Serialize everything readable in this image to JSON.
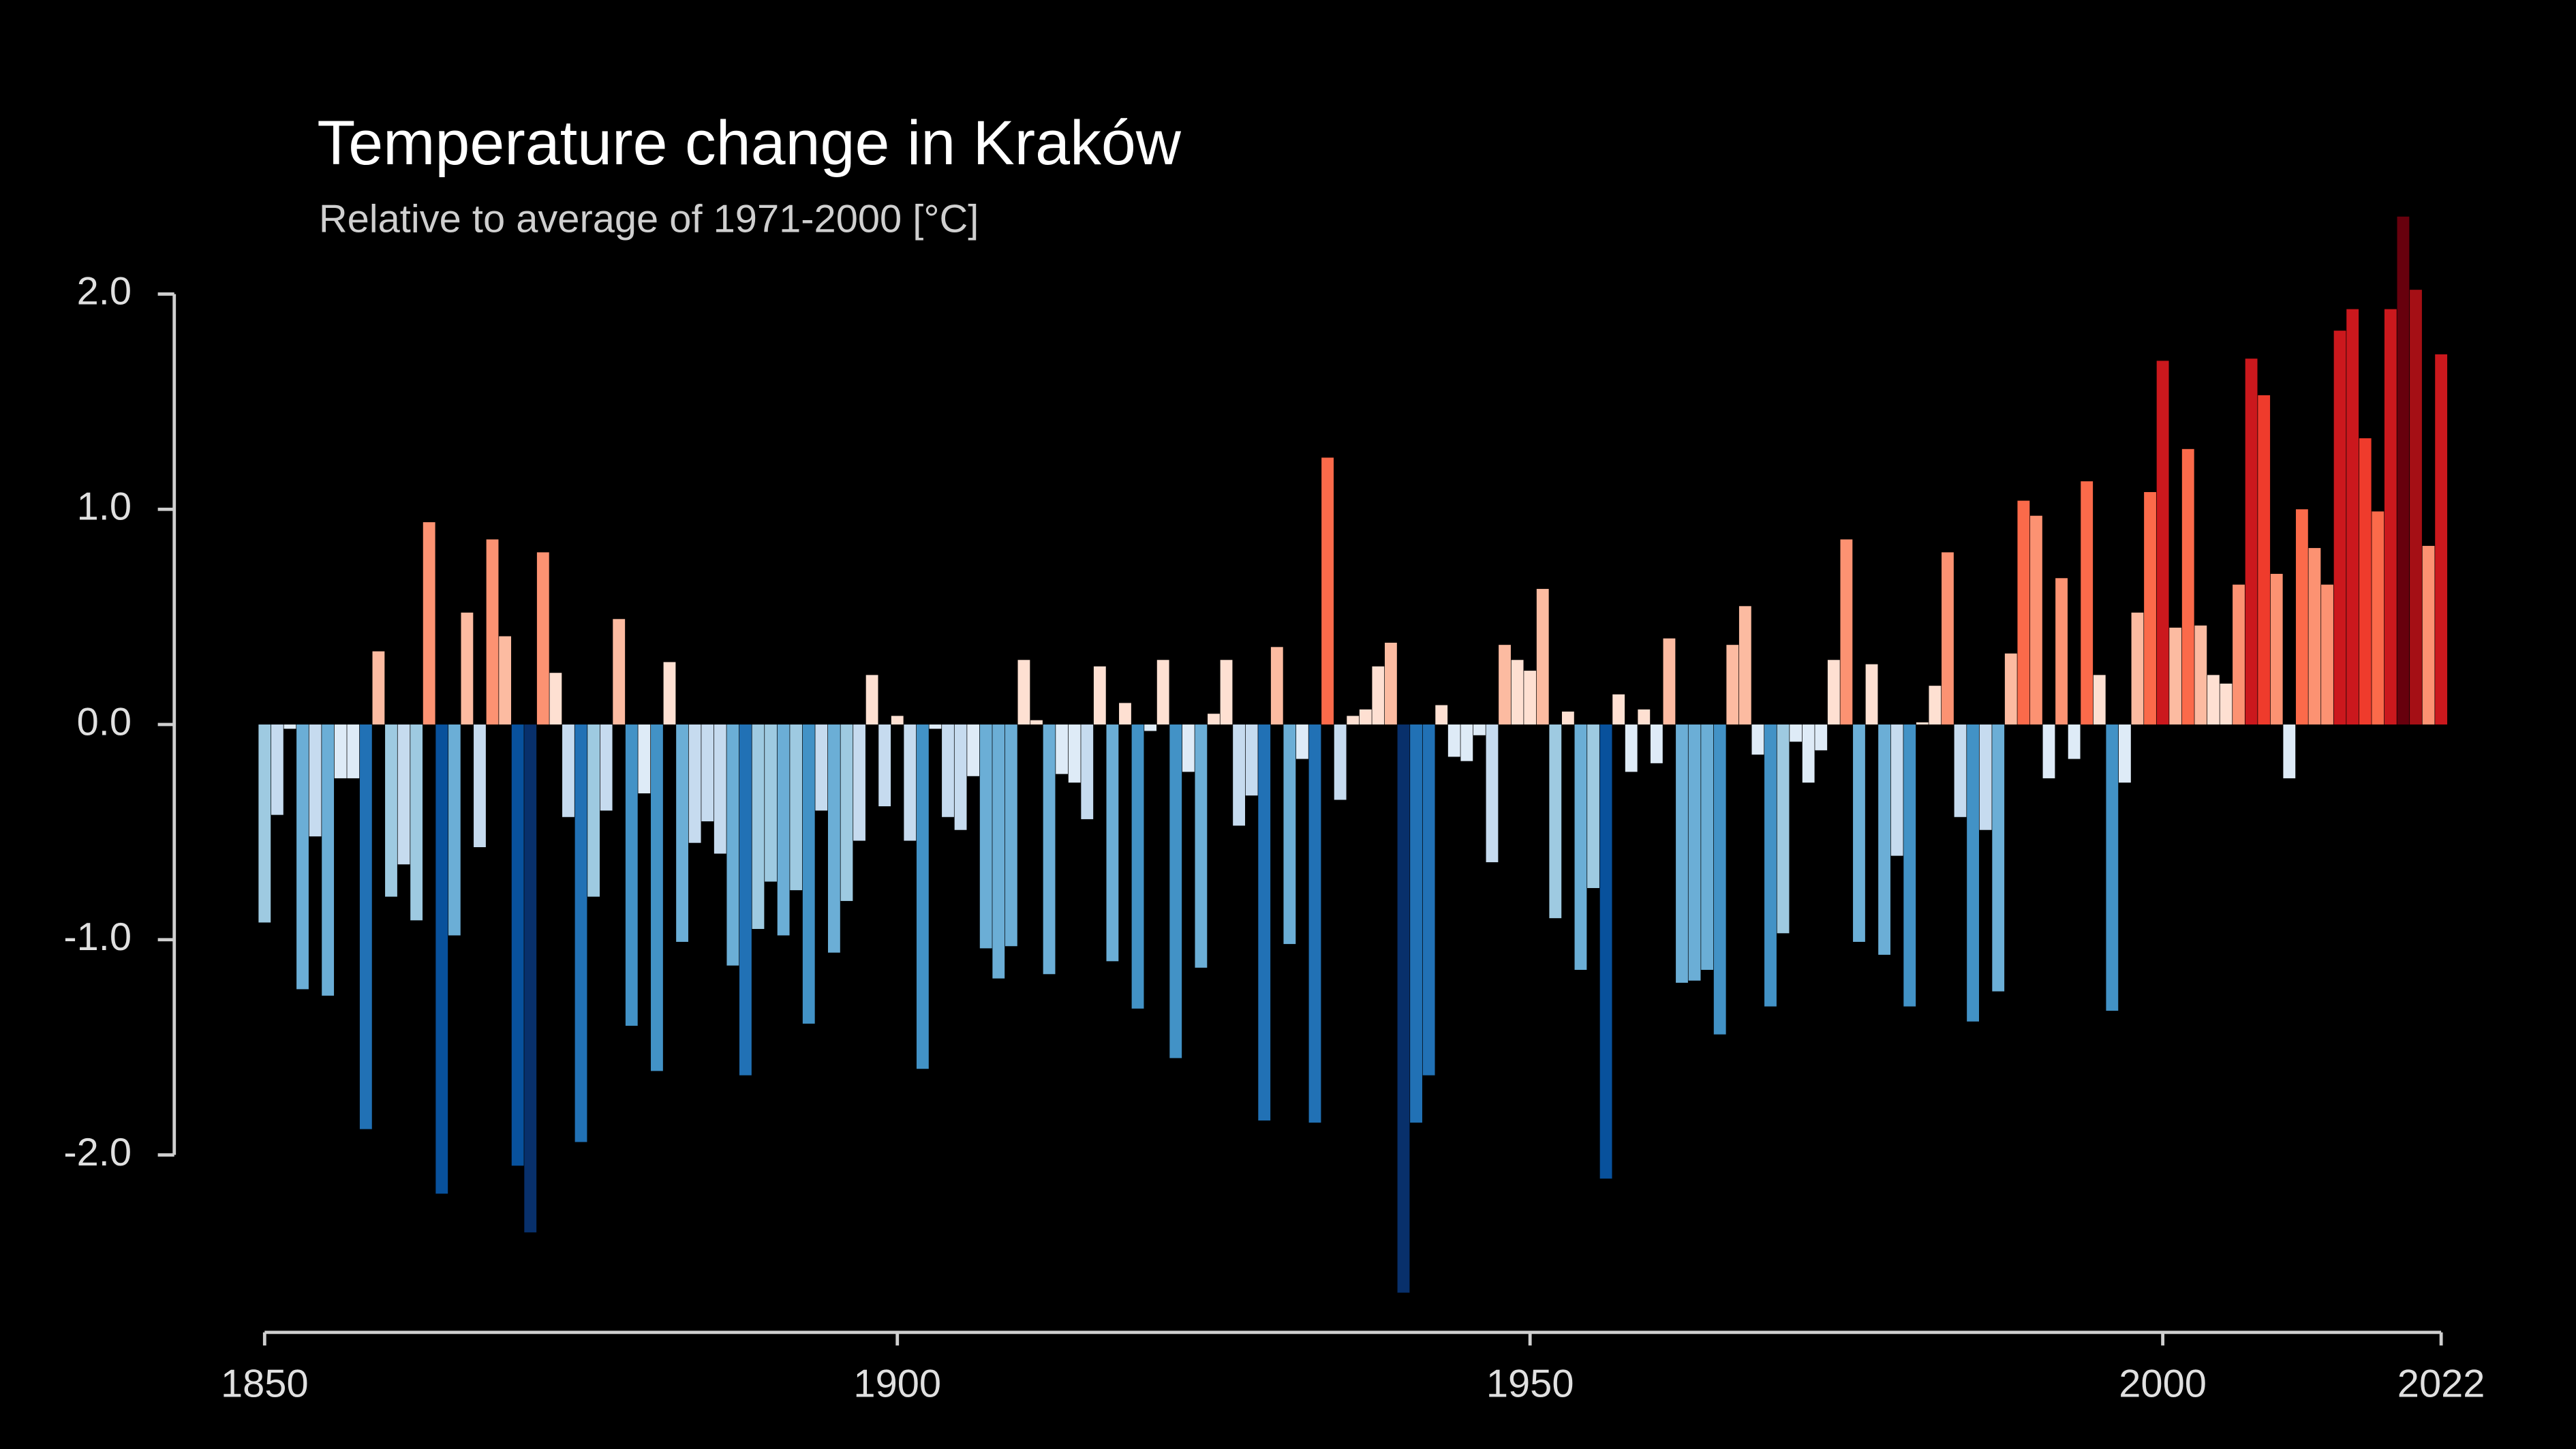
{
  "chart_data": {
    "type": "bar",
    "title": "Temperature change in Kraków",
    "subtitle": "Relative to average of 1971-2000  [°C]",
    "x_start": 1850,
    "values": [
      -0.92,
      -0.42,
      -0.02,
      -1.23,
      -0.52,
      -1.26,
      -0.25,
      -0.25,
      -1.88,
      0.34,
      -0.8,
      -0.65,
      -0.91,
      0.94,
      -2.18,
      -0.98,
      0.52,
      -0.57,
      0.86,
      0.41,
      -2.05,
      -2.36,
      0.8,
      0.24,
      -0.43,
      -1.94,
      -0.8,
      -0.4,
      0.49,
      -1.4,
      -0.32,
      -1.61,
      0.29,
      -1.01,
      -0.55,
      -0.45,
      -0.6,
      -1.12,
      -1.63,
      -0.95,
      -0.73,
      -0.98,
      -0.77,
      -1.39,
      -0.4,
      -1.06,
      -0.82,
      -0.54,
      0.23,
      -0.38,
      0.04,
      -0.54,
      -1.6,
      -0.02,
      -0.43,
      -0.49,
      -0.24,
      -1.04,
      -1.18,
      -1.03,
      0.3,
      0.02,
      -1.16,
      -0.23,
      -0.27,
      -0.44,
      0.27,
      -1.1,
      0.1,
      -1.32,
      -0.03,
      0.3,
      -1.55,
      -0.22,
      -1.13,
      0.05,
      0.3,
      -0.47,
      -0.33,
      -1.84,
      0.36,
      -1.02,
      -0.16,
      -1.85,
      1.24,
      -0.35,
      0.04,
      0.07,
      0.27,
      0.38,
      -2.64,
      -1.85,
      -1.63,
      0.09,
      -0.15,
      -0.17,
      -0.05,
      -0.64,
      0.37,
      0.3,
      0.25,
      0.63,
      -0.9,
      0.06,
      -1.14,
      -0.76,
      -2.11,
      0.14,
      -0.22,
      0.07,
      -0.18,
      0.4,
      -1.2,
      -1.19,
      -1.14,
      -1.44,
      0.37,
      0.55,
      -0.14,
      -1.31,
      -0.97,
      -0.08,
      -0.27,
      -0.12,
      0.3,
      0.86,
      -1.01,
      0.28,
      -1.07,
      -0.61,
      -1.31,
      0.01,
      0.18,
      0.8,
      -0.43,
      -1.38,
      -0.49,
      -1.24,
      0.33,
      1.04,
      0.97,
      -0.25,
      0.68,
      -0.16,
      1.13,
      0.23,
      -1.33,
      -0.27,
      0.52,
      1.08,
      1.69,
      0.45,
      1.28,
      0.46,
      0.23,
      0.19,
      0.65,
      1.7,
      1.53,
      0.7,
      -0.25,
      1.0,
      0.82,
      0.65,
      1.83,
      1.93,
      1.33,
      0.99,
      1.93,
      2.36,
      2.02,
      0.83,
      1.72
    ],
    "colormap": [
      "#08306b",
      "#08519c",
      "#2171b5",
      "#4292c6",
      "#6baed6",
      "#9ecae1",
      "#c6dbef",
      "#deebf7",
      "#fee0d2",
      "#fcbba1",
      "#fc9272",
      "#fb6a4a",
      "#ef3b2c",
      "#cb181d",
      "#a50f15",
      "#67000d"
    ],
    "color_range": [
      -2.6,
      2.6
    ],
    "xlim": [
      1850,
      2022
    ],
    "xticks": [
      1850,
      1900,
      1950,
      2000,
      2022
    ],
    "ylim": [
      -2.8,
      2.8
    ],
    "yticks": [
      {
        "value": 2,
        "label": "2.0"
      },
      {
        "value": 1,
        "label": "1.0"
      },
      {
        "value": 0,
        "label": "0.0"
      },
      {
        "value": -1,
        "label": "-1.0"
      },
      {
        "value": -2,
        "label": "-2.0"
      }
    ]
  }
}
